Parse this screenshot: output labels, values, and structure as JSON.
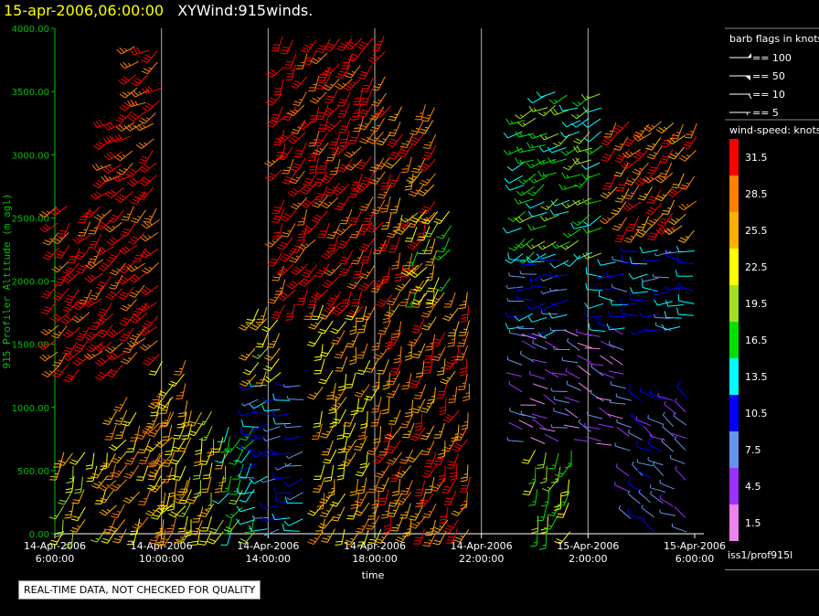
{
  "header": {
    "date_label": "15-apr-2006,06:00:00",
    "title": "XYWind:915winds."
  },
  "chart_data": {
    "type": "wind-barb time-height",
    "ylabel": "915 Profiler Altitude (m agl)",
    "xlabel": "time",
    "ylim": [
      0,
      4000
    ],
    "y_ticks": [
      "0.00",
      "500.00",
      "1000.00",
      "1500.00",
      "2000.00",
      "2500.00",
      "3000.00",
      "3500.00",
      "4000.00"
    ],
    "x_ticks": [
      {
        "date": "14-Apr-2006",
        "time": "6:00:00",
        "hours": 0
      },
      {
        "date": "14-Apr-2006",
        "time": "10:00:00",
        "hours": 4
      },
      {
        "date": "14-Apr-2006",
        "time": "14:00:00",
        "hours": 8
      },
      {
        "date": "14-Apr-2006",
        "time": "18:00:00",
        "hours": 12
      },
      {
        "date": "14-Apr-2006",
        "time": "22:00:00",
        "hours": 16
      },
      {
        "date": "15-Apr-2006",
        "time": "2:00:00",
        "hours": 20
      },
      {
        "date": "15-Apr-2006",
        "time": "6:00:00",
        "hours": 24
      }
    ],
    "vertical_grid_hours": [
      4,
      8,
      12,
      16,
      20
    ],
    "barb_legend": {
      "title": "barb flags in knots",
      "items": [
        "== 100",
        "== 50",
        "== 10",
        "== 5"
      ]
    },
    "speed_legend": {
      "title": "wind-speed: knots",
      "bins": [
        {
          "label": "31.5",
          "color": "#ff0000"
        },
        {
          "label": "28.5",
          "color": "#ff8000"
        },
        {
          "label": "25.5",
          "color": "#ffb000"
        },
        {
          "label": "22.5",
          "color": "#ffff00"
        },
        {
          "label": "19.5",
          "color": "#a0e020"
        },
        {
          "label": "16.5",
          "color": "#00e000"
        },
        {
          "label": "13.5",
          "color": "#00ffff"
        },
        {
          "label": "10.5",
          "color": "#0000ff"
        },
        {
          "label": "7.5",
          "color": "#6495ed"
        },
        {
          "label": "4.5",
          "color": "#9b30ff"
        },
        {
          "label": "1.5",
          "color": "#ee82ee"
        }
      ]
    },
    "wind_regions": [
      {
        "t": [
          0,
          4
        ],
        "z": [
          1300,
          2650
        ],
        "speed": 31.5,
        "dir": 220
      },
      {
        "t": [
          2,
          4
        ],
        "z": [
          2700,
          3350
        ],
        "speed": 31.5,
        "dir": 230
      },
      {
        "t": [
          3,
          4
        ],
        "z": [
          3400,
          3950
        ],
        "speed": 31.5,
        "dir": 240
      },
      {
        "t": [
          0.2,
          2.2
        ],
        "z": [
          0,
          700
        ],
        "speed": 22.5,
        "dir": 200
      },
      {
        "t": [
          2.2,
          4.5
        ],
        "z": [
          0,
          1150
        ],
        "speed": 25.5,
        "dir": 210
      },
      {
        "t": [
          4,
          5
        ],
        "z": [
          0,
          1450
        ],
        "speed": 25.5,
        "dir": 205
      },
      {
        "t": [
          5,
          6.5
        ],
        "z": [
          0,
          1050
        ],
        "speed": 22.5,
        "dir": 200
      },
      {
        "t": [
          6.5,
          7.5
        ],
        "z": [
          0,
          850
        ],
        "speed": 16.5,
        "dir": 210
      },
      {
        "t": [
          7.5,
          9.5
        ],
        "z": [
          0,
          1250
        ],
        "speed": 10.5,
        "dir": 260
      },
      {
        "t": [
          7.5,
          8.5
        ],
        "z": [
          1250,
          1800
        ],
        "speed": 22.5,
        "dir": 215
      },
      {
        "t": [
          8.5,
          12.5
        ],
        "z": [
          1800,
          4000
        ],
        "speed": 31.5,
        "dir": 210
      },
      {
        "t": [
          10,
          12.5
        ],
        "z": [
          0,
          1800
        ],
        "speed": 25.5,
        "dir": 200
      },
      {
        "t": [
          12.5,
          14.5
        ],
        "z": [
          2000,
          3450
        ],
        "speed": 28.5,
        "dir": 205
      },
      {
        "t": [
          12.5,
          15.5
        ],
        "z": [
          0,
          1900
        ],
        "speed": 28.5,
        "dir": 200
      },
      {
        "t": [
          13.5,
          15
        ],
        "z": [
          1900,
          2600
        ],
        "speed": 19.5,
        "dir": 215
      },
      {
        "t": [
          17.5,
          20.5
        ],
        "z": [
          2200,
          3500
        ],
        "speed": 16.5,
        "dir": 240
      },
      {
        "t": [
          17.5,
          19.5
        ],
        "z": [
          1600,
          2200
        ],
        "speed": 10.5,
        "dir": 260
      },
      {
        "t": [
          17.5,
          21.5
        ],
        "z": [
          700,
          1600
        ],
        "speed": 4.5,
        "dir": 290
      },
      {
        "t": [
          20.5,
          24
        ],
        "z": [
          1600,
          2300
        ],
        "speed": 10.5,
        "dir": 270
      },
      {
        "t": [
          21,
          24
        ],
        "z": [
          2400,
          3300
        ],
        "speed": 28.5,
        "dir": 220
      },
      {
        "t": [
          18,
          19.5
        ],
        "z": [
          0,
          700
        ],
        "speed": 19.5,
        "dir": 200
      },
      {
        "t": [
          21.5,
          24
        ],
        "z": [
          0,
          1100
        ],
        "speed": 7.5,
        "dir": 300
      }
    ],
    "source_label": "iss1/prof915l"
  },
  "footer": {
    "quality_notice": "REAL-TIME DATA, NOT CHECKED FOR QUALITY"
  }
}
